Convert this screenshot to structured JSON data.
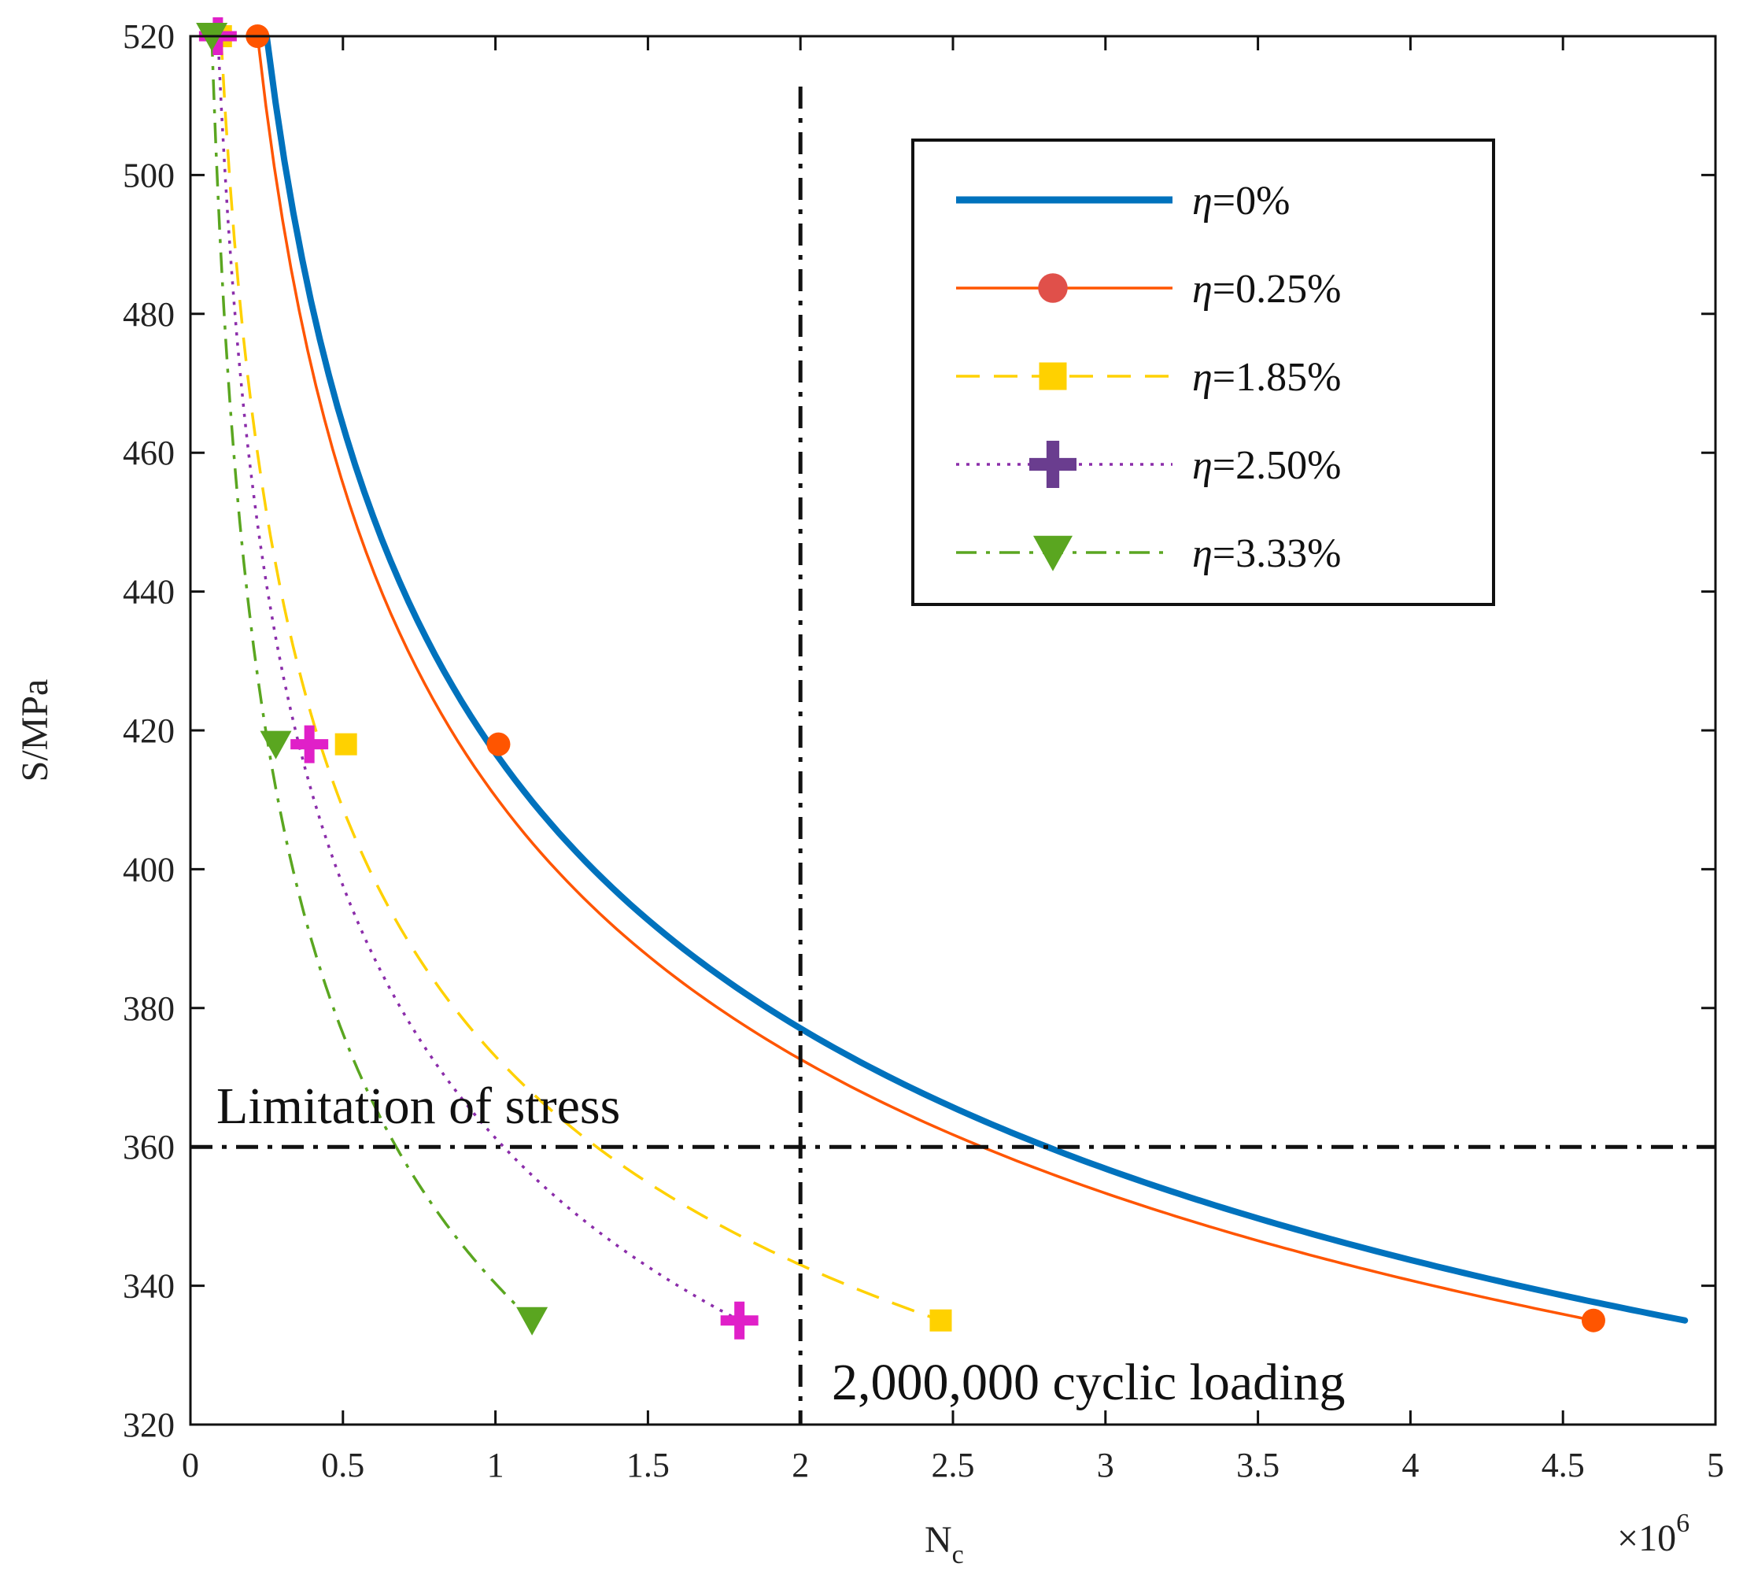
{
  "chart_data": {
    "type": "line",
    "title": "",
    "xlabel": "N",
    "xlabel_sub": "c",
    "ylabel": "S/MPa",
    "x_multiplier_base": "×10",
    "x_multiplier_exp": "6",
    "xlim": [
      0,
      5
    ],
    "ylim": [
      320,
      520
    ],
    "x_ticks": [
      0,
      0.5,
      1,
      1.5,
      2,
      2.5,
      3,
      3.5,
      4,
      4.5,
      5
    ],
    "x_tick_labels": [
      "0",
      "0.5",
      "1",
      "1.5",
      "2",
      "2.5",
      "3",
      "3.5",
      "4",
      "4.5",
      "5"
    ],
    "y_ticks": [
      320,
      340,
      360,
      380,
      400,
      420,
      440,
      460,
      480,
      500,
      520
    ],
    "y_tick_labels": [
      "320",
      "340",
      "360",
      "380",
      "400",
      "420",
      "440",
      "460",
      "480",
      "500",
      "520"
    ],
    "grid": false,
    "legend_position": "top-right",
    "series": [
      {
        "name": "η=0%",
        "eta_symbol": "η",
        "eta_value": "=0%",
        "color": "#0072BD",
        "dash": "solid",
        "marker": "none",
        "x": [
          0.25,
          4.9
        ],
        "y": [
          520,
          335
        ]
      },
      {
        "name": "η=0.25%",
        "eta_symbol": "η",
        "eta_value": "=0.25%",
        "color": "#FF5500",
        "dash": "solid",
        "marker": "circle",
        "marker_x": [
          0.22,
          1.01,
          4.6
        ],
        "marker_y": [
          520,
          418,
          335
        ],
        "x": [
          0.22,
          4.6
        ],
        "y": [
          520,
          335
        ]
      },
      {
        "name": "η=1.85%",
        "eta_symbol": "η",
        "eta_value": "=1.85%",
        "color": "#FFD100",
        "dash": "dashed",
        "marker": "square",
        "marker_x": [
          0.1,
          0.51,
          2.46
        ],
        "marker_y": [
          520,
          418,
          335
        ],
        "x": [
          0.1,
          2.46
        ],
        "y": [
          520,
          335
        ]
      },
      {
        "name": "η=2.50%",
        "eta_symbol": "η",
        "eta_value": "=2.50%",
        "color": "#8B2DAA",
        "marker_color": "#E020C8",
        "legend_marker_color": "#6A3D8F",
        "dash": "dotted",
        "marker": "plus",
        "marker_x": [
          0.09,
          0.39,
          1.8
        ],
        "marker_y": [
          520,
          418,
          335
        ],
        "x": [
          0.09,
          1.8
        ],
        "y": [
          520,
          335
        ]
      },
      {
        "name": "η=3.33%",
        "eta_symbol": "η",
        "eta_value": "=3.33%",
        "color": "#5AA620",
        "dash": "dashdot",
        "marker": "triangle-down",
        "marker_x": [
          0.07,
          0.28,
          1.12
        ],
        "marker_y": [
          520,
          418,
          335
        ],
        "x": [
          0.07,
          1.12
        ],
        "y": [
          520,
          335
        ]
      }
    ],
    "reference_lines": [
      {
        "orientation": "vertical",
        "value": 2,
        "label": "2,000,000 cyclic loading"
      },
      {
        "orientation": "horizontal",
        "value": 360,
        "label": "Limitation of stress"
      }
    ]
  }
}
